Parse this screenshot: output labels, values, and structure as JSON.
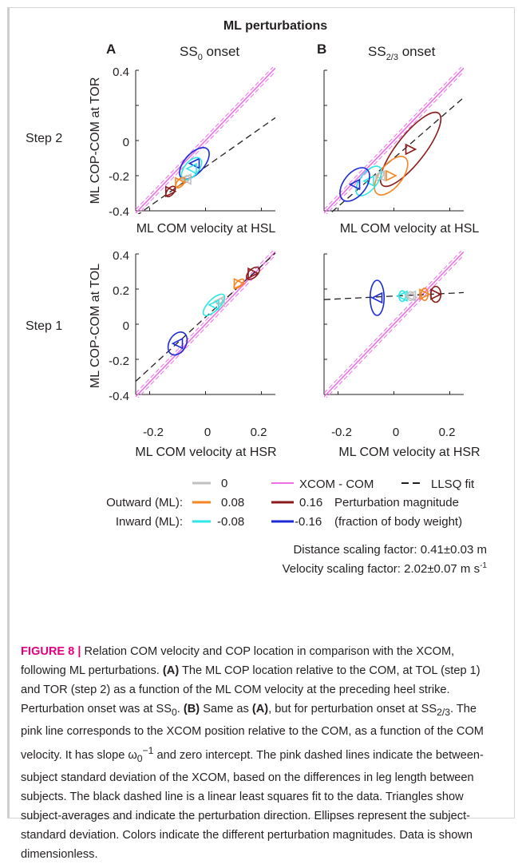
{
  "figure": {
    "title": "ML perturbations",
    "panels": [
      {
        "letter": "A",
        "onset_base": "SS",
        "onset_sub": "0",
        "onset_suffix": " onset"
      },
      {
        "letter": "B",
        "onset_base": "SS",
        "onset_sub": "2/3",
        "onset_suffix": " onset"
      }
    ],
    "rows": [
      {
        "label": "Step 2",
        "ylabel": "ML COP-COM at TOR",
        "xlabel": "ML COM velocity at HSL"
      },
      {
        "label": "Step 1",
        "ylabel": "ML COP-COM at TOL",
        "xlabel": "ML COM velocity at HSR"
      }
    ],
    "x_ticks": [
      "-0.2",
      "0",
      "0.2"
    ],
    "y_ticks": [
      "0.4",
      "0.2",
      "0",
      "-0.2",
      "-0.4"
    ]
  },
  "legend": {
    "zero": "0",
    "xcom": "XCOM - COM",
    "llsq": "LLSQ fit",
    "outward_label": "Outward (ML):",
    "inward_label": "Inward (ML):",
    "out_small": "0.08",
    "out_large": "0.16",
    "in_small": "-0.08",
    "in_large": "-0.16",
    "magnitude_line1": "Perturbation magnitude",
    "magnitude_line2": "(fraction of body weight)",
    "distance_scaling": "Distance scaling factor: 0.41±0.03 m",
    "velocity_scaling_prefix": "Velocity scaling factor: 2.02±0.07 m s",
    "velocity_scaling_exp": "-1"
  },
  "colors": {
    "zero": "#c0c0c0",
    "out_small": "#f7851f",
    "out_large": "#8b1a1a",
    "in_small": "#2ee6e6",
    "in_large": "#1a2bd6",
    "xcom": "#ee6ee8",
    "llsq": "#231f20",
    "figure_label": "#e5007d"
  },
  "caption": {
    "fig_label": "FIGURE 8 |",
    "s1": " Relation COM velocity and COP location in comparison with the XCOM, following ML perturbations. ",
    "a_label": "(A)",
    "s2": " The ML COP location relative to the COM, at TOL (step 1) and TOR (step 2) as a function of the ML COM velocity at the preceding heel strike. Perturbation onset was at SS",
    "s2_sub": "0",
    "s3": ". ",
    "b_label": "(B)",
    "s4": " Same as ",
    "a_label2": "(A)",
    "s5": ", but for perturbation onset at SS",
    "s5_sub": "2/3",
    "s6": ". The pink line corresponds to the XCOM position relative to the COM, as a function of the COM velocity. It has slope ω",
    "omega_sub": "0",
    "omega_sup": "−1",
    "s7": " and zero intercept. The pink dashed lines indicate the between-subject standard deviation of the XCOM, based on the differences in leg length between subjects. The black dashed line is a linear least squares fit to the data. Triangles show subject-averages and indicate the perturbation direction. Ellipses represent the subject-standard deviation. Colors indicate the different perturbation magnitudes. Data is shown dimensionless."
  },
  "chart_data": [
    {
      "type": "scatter",
      "title": "SS0 onset",
      "xlabel": "ML COM velocity at HSL",
      "ylabel": "ML COP-COM at TOR",
      "ylim": [
        -0.4,
        0.4
      ],
      "xlim": [
        -0.25,
        0.25
      ],
      "xcom_slope": 1.65,
      "fit": {
        "slope": 1.12,
        "intercept": -0.15
      },
      "series": [
        {
          "name": "-0.16",
          "x": -0.04,
          "y": -0.13,
          "sx": 0.035,
          "sy": 0.11,
          "angle": 42,
          "dir": "left"
        },
        {
          "name": "-0.08",
          "x": -0.05,
          "y": -0.16,
          "sx": 0.025,
          "sy": 0.075,
          "angle": 40,
          "dir": "left"
        },
        {
          "name": "0",
          "x": -0.07,
          "y": -0.22,
          "sx": 0.01,
          "sy": 0.022,
          "angle": 40,
          "dir": "left"
        },
        {
          "name": "0.08",
          "x": -0.09,
          "y": -0.24,
          "sx": 0.012,
          "sy": 0.035,
          "angle": 40,
          "dir": "right"
        },
        {
          "name": "0.16",
          "x": -0.125,
          "y": -0.29,
          "sx": 0.012,
          "sy": 0.035,
          "angle": 40,
          "dir": "right"
        }
      ]
    },
    {
      "type": "scatter",
      "title": "SS2/3 onset",
      "xlabel": "ML COM velocity at HSL",
      "ylabel": "ML COP-COM at TOR",
      "ylim": [
        -0.4,
        0.4
      ],
      "xlim": [
        -0.25,
        0.25
      ],
      "xcom_slope": 1.65,
      "fit": {
        "slope": 1.38,
        "intercept": -0.1
      },
      "series": [
        {
          "name": "0.16",
          "x": 0.06,
          "y": -0.05,
          "sx": 0.05,
          "sy": 0.26,
          "angle": 38,
          "dir": "right"
        },
        {
          "name": "0.08",
          "x": -0.01,
          "y": -0.2,
          "sx": 0.04,
          "sy": 0.13,
          "angle": 38,
          "dir": "right"
        },
        {
          "name": "0",
          "x": -0.05,
          "y": -0.2,
          "sx": 0.01,
          "sy": 0.03,
          "angle": 38,
          "dir": "left"
        },
        {
          "name": "-0.08",
          "x": -0.09,
          "y": -0.23,
          "sx": 0.03,
          "sy": 0.1,
          "angle": 38,
          "dir": "left"
        },
        {
          "name": "-0.16",
          "x": -0.14,
          "y": -0.25,
          "sx": 0.04,
          "sy": 0.11,
          "angle": 38,
          "dir": "left"
        }
      ]
    },
    {
      "type": "scatter",
      "title": "SS0 onset",
      "xlabel": "ML COM velocity at HSR",
      "ylabel": "ML COP-COM at TOL",
      "ylim": [
        -0.4,
        0.4
      ],
      "xlim": [
        -0.25,
        0.25
      ],
      "xcom_slope": 1.65,
      "fit": {
        "slope": 1.46,
        "intercept": 0.04
      },
      "series": [
        {
          "name": "0.16",
          "x": 0.17,
          "y": 0.29,
          "sx": 0.015,
          "sy": 0.045,
          "angle": 48,
          "dir": "right"
        },
        {
          "name": "0.08",
          "x": 0.12,
          "y": 0.23,
          "sx": 0.01,
          "sy": 0.035,
          "angle": 48,
          "dir": "right"
        },
        {
          "name": "0",
          "x": 0.05,
          "y": 0.13,
          "sx": 0.008,
          "sy": 0.02,
          "angle": 48,
          "dir": "left"
        },
        {
          "name": "-0.08",
          "x": 0.03,
          "y": 0.11,
          "sx": 0.02,
          "sy": 0.08,
          "angle": 45,
          "dir": "left"
        },
        {
          "name": "-0.16",
          "x": -0.1,
          "y": -0.11,
          "sx": 0.03,
          "sy": 0.07,
          "angle": 30,
          "dir": "left"
        }
      ]
    },
    {
      "type": "scatter",
      "title": "SS2/3 onset",
      "xlabel": "ML COM velocity at HSR",
      "ylabel": "ML COP-COM at TOL",
      "ylim": [
        -0.4,
        0.4
      ],
      "xlim": [
        -0.25,
        0.25
      ],
      "xcom_slope": 1.65,
      "fit": {
        "slope": 0.08,
        "intercept": 0.16
      },
      "series": [
        {
          "name": "-0.16",
          "x": -0.06,
          "y": 0.15,
          "sx": 0.025,
          "sy": 0.1,
          "angle": 0,
          "dir": "left"
        },
        {
          "name": "-0.08",
          "x": 0.03,
          "y": 0.16,
          "sx": 0.012,
          "sy": 0.03,
          "angle": 0,
          "dir": "left"
        },
        {
          "name": "0",
          "x": 0.06,
          "y": 0.16,
          "sx": 0.012,
          "sy": 0.025,
          "angle": 0,
          "dir": "left"
        },
        {
          "name": "0.08",
          "x": 0.11,
          "y": 0.17,
          "sx": 0.012,
          "sy": 0.035,
          "angle": 0,
          "dir": "right"
        },
        {
          "name": "0.16",
          "x": 0.15,
          "y": 0.17,
          "sx": 0.018,
          "sy": 0.045,
          "angle": 0,
          "dir": "right"
        }
      ]
    }
  ]
}
